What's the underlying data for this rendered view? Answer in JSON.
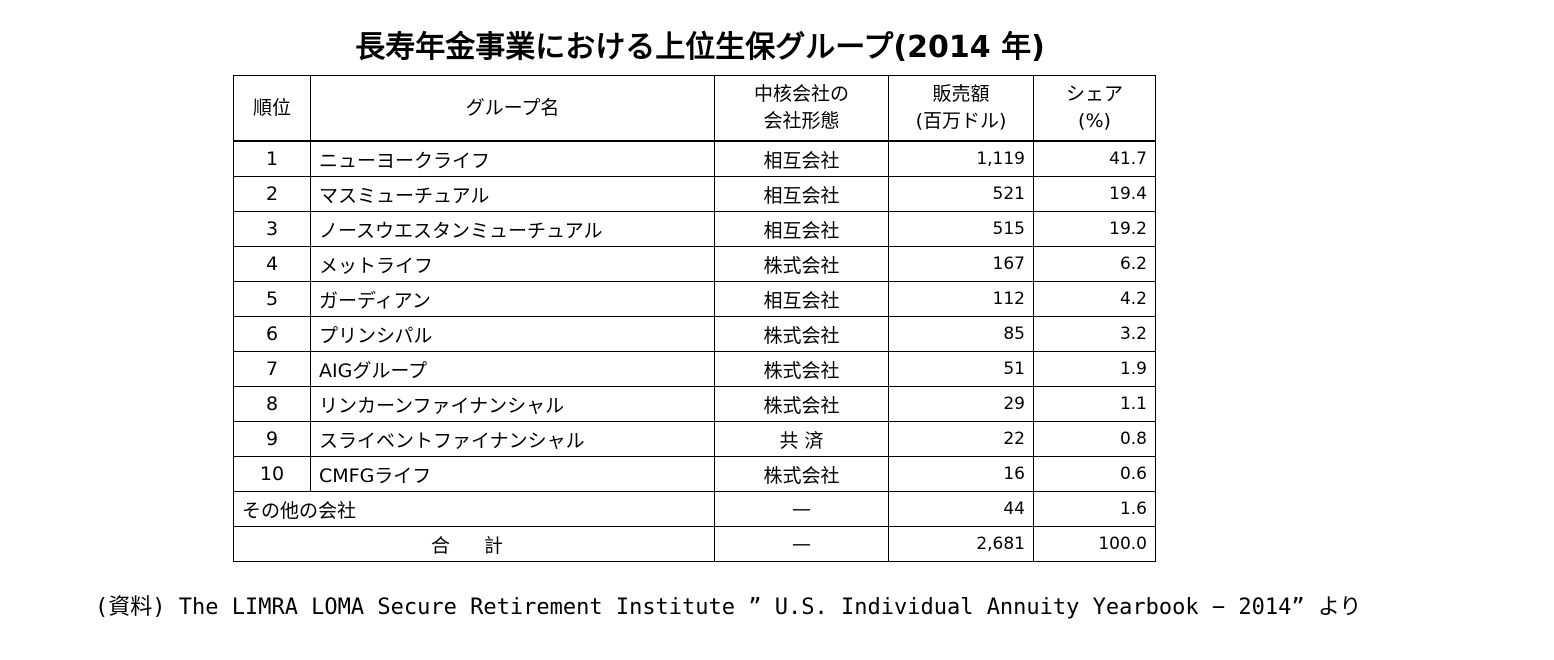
{
  "title": "長寿年金事業における上位生保グループ(2014 年)",
  "table": {
    "headers": {
      "rank": "順位",
      "group": "グループ名",
      "company_form_line1": "中核会社の",
      "company_form_line2": "会社形態",
      "sales_line1": "販売額",
      "sales_line2": "(百万ドル)",
      "share_line1": "シェア",
      "share_line2": "(%)"
    },
    "rows": [
      {
        "rank": "1",
        "group": "ニューヨークライフ",
        "form": "相互会社",
        "sales": "1,119",
        "share": "41.7"
      },
      {
        "rank": "2",
        "group": "マスミューチュアル",
        "form": "相互会社",
        "sales": "521",
        "share": "19.4"
      },
      {
        "rank": "3",
        "group": "ノースウエスタンミューチュアル",
        "form": "相互会社",
        "sales": "515",
        "share": "19.2"
      },
      {
        "rank": "4",
        "group": "メットライフ",
        "form": "株式会社",
        "sales": "167",
        "share": "6.2"
      },
      {
        "rank": "5",
        "group": "ガーディアン",
        "form": "相互会社",
        "sales": "112",
        "share": "4.2"
      },
      {
        "rank": "6",
        "group": "プリンシパル",
        "form": "株式会社",
        "sales": "85",
        "share": "3.2"
      },
      {
        "rank": "7",
        "group": "AIGグループ",
        "form": "株式会社",
        "sales": "51",
        "share": "1.9"
      },
      {
        "rank": "8",
        "group": "リンカーンファイナンシャル",
        "form": "株式会社",
        "sales": "29",
        "share": "1.1"
      },
      {
        "rank": "9",
        "group": "スライベントファイナンシャル",
        "form": "共 済",
        "sales": "22",
        "share": "0.8"
      },
      {
        "rank": "10",
        "group": "CMFGライフ",
        "form": "株式会社",
        "sales": "16",
        "share": "0.6"
      }
    ],
    "other": {
      "label": "その他の会社",
      "form": "—",
      "sales": "44",
      "share": "1.6"
    },
    "total": {
      "label": "合 計",
      "form": "—",
      "sales": "2,681",
      "share": "100.0"
    }
  },
  "source": "(資料) The LIMRA LOMA Secure Retirement Institute ” U.S. Individual Annuity Yearbook − 2014” より"
}
